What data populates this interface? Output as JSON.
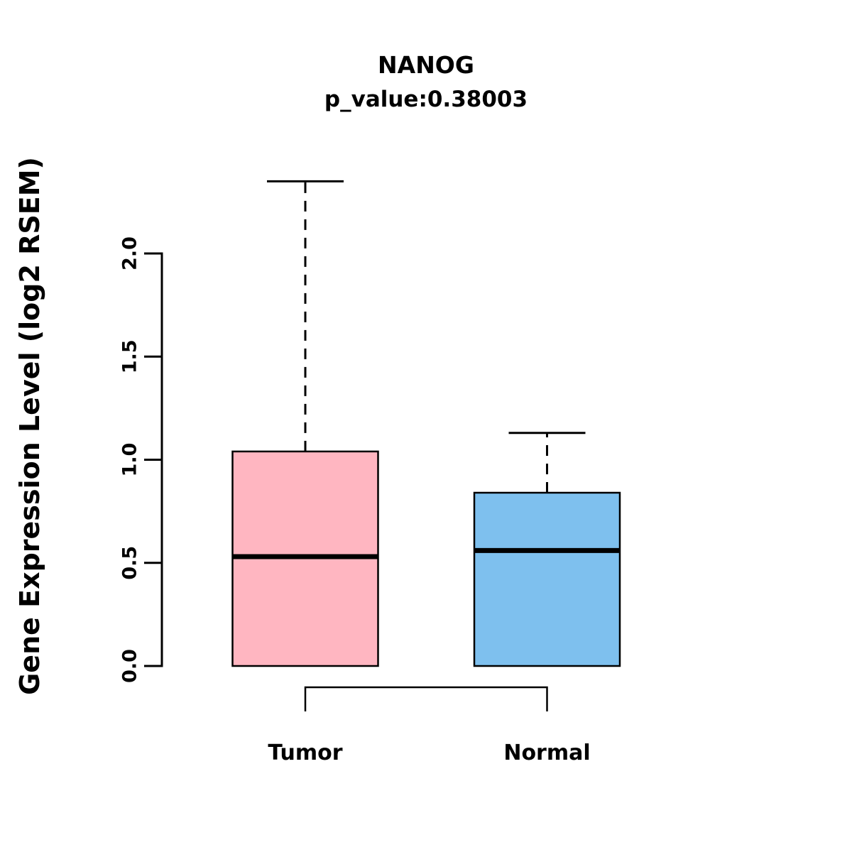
{
  "chart_data": {
    "type": "boxplot",
    "title": "NANOG",
    "subtitle": "p_value:0.38003",
    "p_value": 0.38003,
    "ylabel": "Gene Expression Level (log2 RSEM)",
    "xlabel": "",
    "ylim": [
      0.0,
      2.0
    ],
    "ytick_labels": [
      "0.0",
      "0.5",
      "1.0",
      "1.5",
      "2.0"
    ],
    "grid": false,
    "legend": "none",
    "comparison_bracket": true,
    "groups": [
      {
        "label": "Tumor",
        "color": "#FFB6C1",
        "min": 0.0,
        "q1": 0.0,
        "median": 0.53,
        "q3": 1.04,
        "max": 2.35
      },
      {
        "label": "Normal",
        "color": "#7EC0EE",
        "min": 0.0,
        "q1": 0.0,
        "median": 0.56,
        "q3": 0.84,
        "max": 1.13
      }
    ]
  }
}
